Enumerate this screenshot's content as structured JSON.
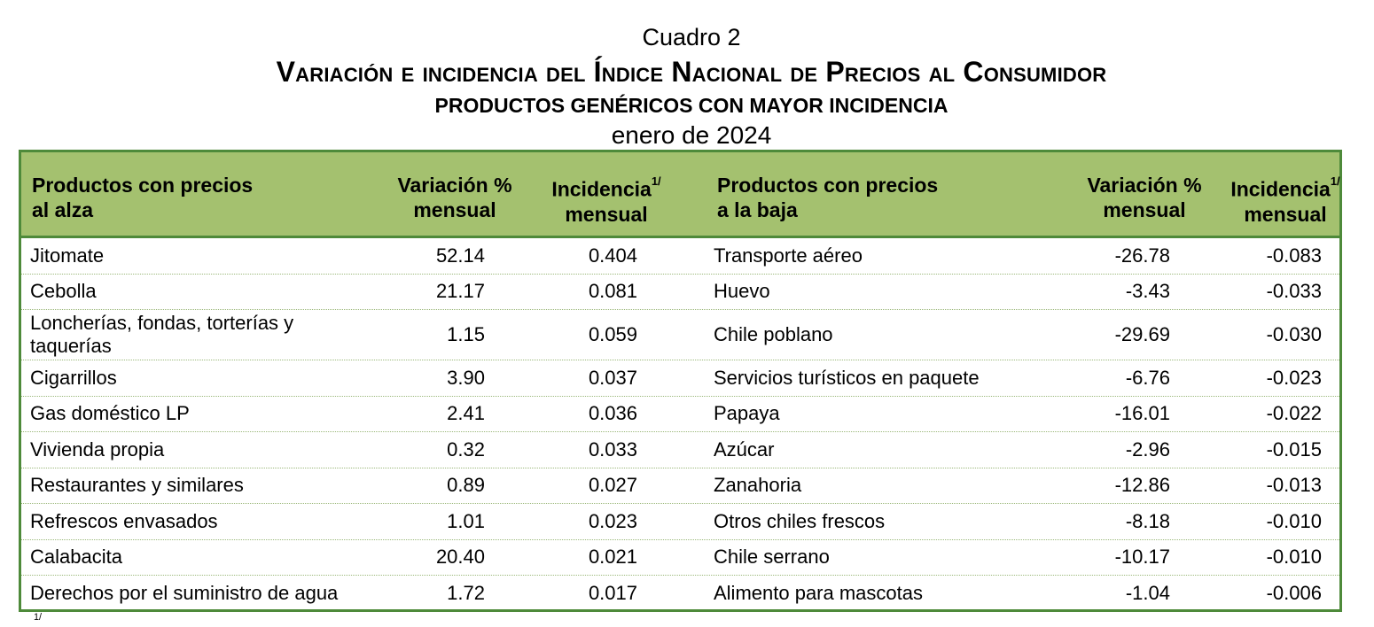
{
  "header": {
    "cuadro": "Cuadro 2",
    "title": "Variación e incidencia del Índice Nacional de Precios al Consumidor",
    "subtitle": "PRODUCTOS GENÉRICOS CON MAYOR INCIDENCIA",
    "period": "enero de 2024"
  },
  "table": {
    "columns": {
      "up_products_l1": "Productos con precios",
      "up_products_l2": "al alza",
      "variation_l1": "Variación %",
      "variation_l2": "mensual",
      "incidence_l1": "Incidencia",
      "incidence_sup": "1/",
      "incidence_l2": "mensual",
      "down_products_l1": "Productos con precios",
      "down_products_l2": "a la baja"
    },
    "rows": [
      {
        "up_product": "Jitomate",
        "up_var": "52.14",
        "up_inc": "0.404",
        "down_product": "Transporte aéreo",
        "down_var": "-26.78",
        "down_inc": "-0.083"
      },
      {
        "up_product": "Cebolla",
        "up_var": "21.17",
        "up_inc": "0.081",
        "down_product": "Huevo",
        "down_var": "-3.43",
        "down_inc": "-0.033"
      },
      {
        "up_product": "Loncherías, fondas, torterías y taquerías",
        "up_var": "1.15",
        "up_inc": "0.059",
        "down_product": "Chile poblano",
        "down_var": "-29.69",
        "down_inc": "-0.030"
      },
      {
        "up_product": "Cigarrillos",
        "up_var": "3.90",
        "up_inc": "0.037",
        "down_product": "Servicios turísticos en paquete",
        "down_var": "-6.76",
        "down_inc": "-0.023"
      },
      {
        "up_product": "Gas doméstico LP",
        "up_var": "2.41",
        "up_inc": "0.036",
        "down_product": "Papaya",
        "down_var": "-16.01",
        "down_inc": "-0.022"
      },
      {
        "up_product": "Vivienda propia",
        "up_var": "0.32",
        "up_inc": "0.033",
        "down_product": "Azúcar",
        "down_var": "-2.96",
        "down_inc": "-0.015"
      },
      {
        "up_product": "Restaurantes y similares",
        "up_var": "0.89",
        "up_inc": "0.027",
        "down_product": "Zanahoria",
        "down_var": "-12.86",
        "down_inc": "-0.013"
      },
      {
        "up_product": "Refrescos envasados",
        "up_var": "1.01",
        "up_inc": "0.023",
        "down_product": "Otros chiles frescos",
        "down_var": "-8.18",
        "down_inc": "-0.010"
      },
      {
        "up_product": "Calabacita",
        "up_var": "20.40",
        "up_inc": "0.021",
        "down_product": "Chile serrano",
        "down_var": "-10.17",
        "down_inc": "-0.010"
      },
      {
        "up_product": "Derechos por el suministro de agua",
        "up_var": "1.72",
        "up_inc": "0.017",
        "down_product": "Alimento para mascotas",
        "down_var": "-1.04",
        "down_inc": "-0.006"
      }
    ]
  },
  "footnote": {
    "marker": "1/"
  },
  "colors": {
    "header_fill": "#a4c16f",
    "border": "#4e8a3a"
  }
}
